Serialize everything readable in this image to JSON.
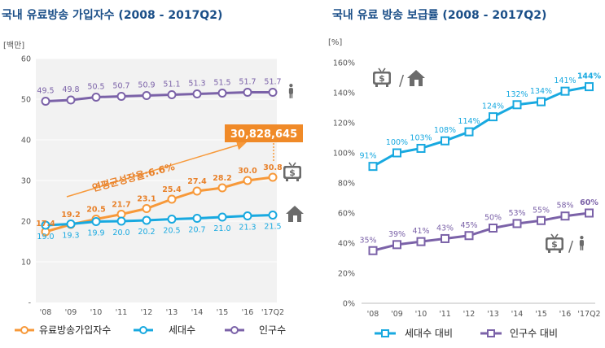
{
  "colors": {
    "orange": "#f7993a",
    "orange_label": "#e8812a",
    "cyan": "#18a9e0",
    "purple": "#7b62a8",
    "callout_bg": "#f08a28",
    "grid": "#e6e6e6",
    "plot_bg": "#f2f2f2",
    "icon": "#6b6b6b"
  },
  "icons": [
    "tv-icon",
    "dollar-icon",
    "house-icon",
    "person-icon"
  ],
  "chart_data": [
    {
      "type": "line",
      "title": "국내 유료방송 가입자수 (2008 - 2017Q2)",
      "unit_label": "[백만]",
      "categories": [
        "'08",
        "'09",
        "'10",
        "'11",
        "'12",
        "'13",
        "'14",
        "'15",
        "'16",
        "'17Q2"
      ],
      "ylim": [
        0,
        60
      ],
      "yticks": [
        "-",
        "10",
        "20",
        "30",
        "40",
        "50",
        "60"
      ],
      "grid": true,
      "series": [
        {
          "name": "유료방송가입자수",
          "values": [
            17.4,
            19.2,
            20.5,
            21.7,
            23.1,
            25.4,
            27.4,
            28.2,
            30.0,
            30.8
          ]
        },
        {
          "name": "세대수",
          "values": [
            19.0,
            19.3,
            19.9,
            20.0,
            20.2,
            20.5,
            20.7,
            21.0,
            21.3,
            21.5
          ]
        },
        {
          "name": "인구수",
          "values": [
            49.5,
            49.8,
            50.5,
            50.7,
            50.9,
            51.1,
            51.3,
            51.5,
            51.7,
            51.7
          ]
        }
      ],
      "annotations": {
        "growth": "연평균성장율:6.6%",
        "callout": "30,828,645"
      }
    },
    {
      "type": "line",
      "title": "국내 유료 방송 보급률 (2008 - 2017Q2)",
      "unit_label": "[%]",
      "categories": [
        "'08",
        "'09",
        "'10",
        "'11",
        "'12",
        "'13",
        "'14",
        "'15",
        "'16",
        "'17Q2"
      ],
      "ylim": [
        0,
        160
      ],
      "yticks": [
        "0%",
        "20%",
        "40%",
        "60%",
        "80%",
        "100%",
        "120%",
        "140%",
        "160%"
      ],
      "grid": false,
      "series": [
        {
          "name": "세대수 대비",
          "values": [
            91,
            100,
            103,
            108,
            114,
            124,
            132,
            134,
            141,
            144
          ],
          "labels": [
            "91%",
            "100%",
            "103%",
            "108%",
            "114%",
            "124%",
            "132%",
            "134%",
            "141%",
            "144%"
          ]
        },
        {
          "name": "인구수 대비",
          "values": [
            35,
            39,
            41,
            43,
            45,
            50,
            53,
            55,
            58,
            60
          ],
          "labels": [
            "35%",
            "39%",
            "41%",
            "43%",
            "45%",
            "50%",
            "53%",
            "55%",
            "58%",
            "60%"
          ]
        }
      ]
    }
  ]
}
